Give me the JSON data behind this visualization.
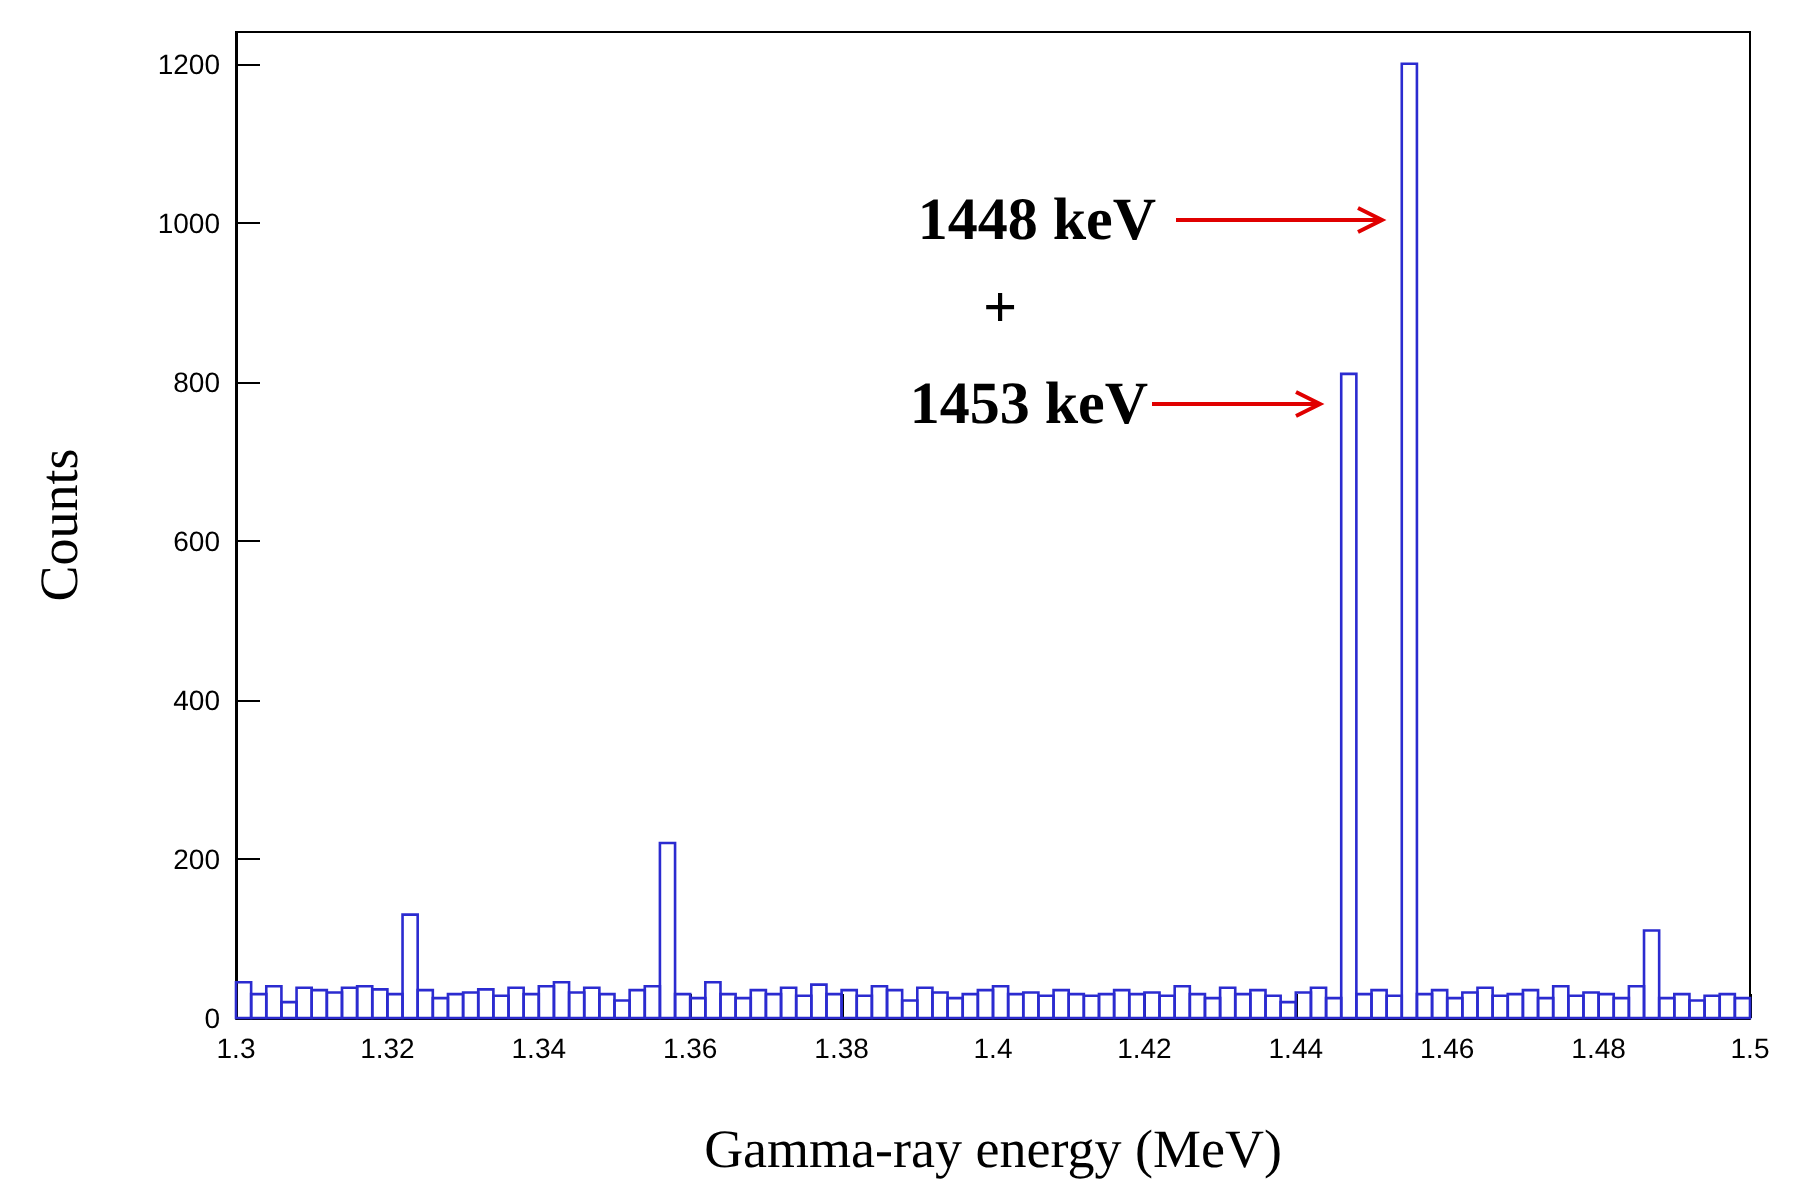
{
  "chart_data": {
    "type": "histogram",
    "xlabel": "Gamma-ray energy (MeV)",
    "ylabel": "Counts",
    "color": "#2b2bd0",
    "bins": [
      1.3,
      1.302,
      1.304,
      1.306,
      1.308,
      1.31,
      1.312,
      1.314,
      1.316,
      1.318,
      1.32,
      1.322,
      1.324,
      1.326,
      1.328,
      1.33,
      1.332,
      1.334,
      1.336,
      1.338,
      1.34,
      1.342,
      1.344,
      1.346,
      1.348,
      1.35,
      1.352,
      1.354,
      1.356,
      1.358,
      1.36,
      1.362,
      1.364,
      1.366,
      1.368,
      1.37,
      1.372,
      1.374,
      1.376,
      1.378,
      1.38,
      1.382,
      1.384,
      1.386,
      1.388,
      1.39,
      1.392,
      1.394,
      1.396,
      1.398,
      1.4,
      1.402,
      1.404,
      1.406,
      1.408,
      1.41,
      1.412,
      1.414,
      1.416,
      1.418,
      1.42,
      1.422,
      1.424,
      1.426,
      1.428,
      1.43,
      1.432,
      1.434,
      1.436,
      1.438,
      1.44,
      1.442,
      1.444,
      1.446,
      1.448,
      1.45,
      1.452,
      1.454,
      1.456,
      1.458,
      1.46,
      1.462,
      1.464,
      1.466,
      1.468,
      1.47,
      1.472,
      1.474,
      1.476,
      1.478,
      1.48,
      1.482,
      1.484,
      1.486,
      1.488,
      1.49,
      1.492,
      1.494,
      1.496,
      1.498,
      1.5
    ],
    "values": [
      45,
      30,
      40,
      20,
      38,
      35,
      32,
      38,
      40,
      36,
      30,
      130,
      35,
      25,
      30,
      32,
      36,
      28,
      38,
      30,
      40,
      45,
      32,
      38,
      30,
      22,
      35,
      40,
      220,
      30,
      25,
      45,
      30,
      25,
      35,
      30,
      38,
      28,
      42,
      30,
      35,
      28,
      40,
      35,
      22,
      38,
      32,
      25,
      30,
      35,
      40,
      30,
      32,
      28,
      35,
      30,
      28,
      30,
      35,
      30,
      32,
      28,
      40,
      30,
      25,
      38,
      30,
      35,
      28,
      20,
      32,
      38,
      25,
      810,
      30,
      35,
      28,
      1200,
      30,
      35,
      25,
      32,
      38,
      28,
      30,
      35,
      25,
      40,
      28,
      32,
      30,
      25,
      40,
      110,
      25,
      30,
      22,
      28,
      30,
      25
    ],
    "xlim": [
      1.3,
      1.5
    ],
    "xticks": [
      1.3,
      1.32,
      1.34,
      1.36,
      1.38,
      1.4,
      1.42,
      1.44,
      1.46,
      1.48,
      1.5
    ],
    "ylim": [
      0,
      1240
    ],
    "yticks": [
      0,
      200,
      400,
      600,
      800,
      1000,
      1200
    ],
    "annotations": [
      "1448 keV",
      "+",
      "1453 keV"
    ]
  }
}
